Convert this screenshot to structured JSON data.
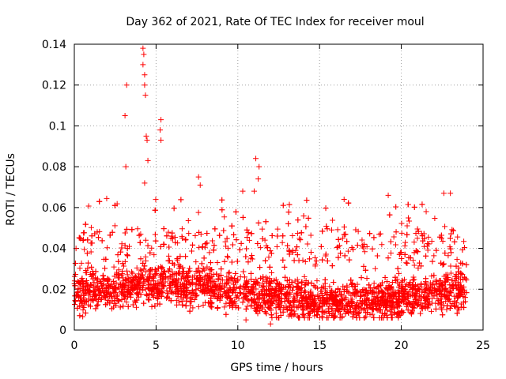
{
  "chart_data": {
    "type": "scatter",
    "title": "Day 362 of 2021, Rate Of TEC Index for receiver moul",
    "xlabel": "GPS time / hours",
    "ylabel": "ROTI / TECUs",
    "xlim": [
      0,
      25
    ],
    "ylim": [
      0,
      0.14
    ],
    "xticks": [
      0,
      5,
      10,
      15,
      20,
      25
    ],
    "xtick_labels": [
      "0",
      "5",
      "10",
      "15",
      "20",
      "25"
    ],
    "yticks": [
      0,
      0.02,
      0.04,
      0.06,
      0.08,
      0.1,
      0.12,
      0.14
    ],
    "ytick_labels": [
      "0",
      "0.02",
      "0.04",
      "0.06",
      "0.08",
      "0.1",
      "0.12",
      "0.14"
    ],
    "grid": true,
    "marker": "+",
    "series": [
      {
        "name": "ROTI",
        "color": "#ff0000",
        "n_points": 4200,
        "x_range": [
          0,
          24
        ],
        "typical_range": [
          0.008,
          0.035
        ],
        "notable_points": [
          {
            "x": 3.1,
            "y": 0.105
          },
          {
            "x": 3.2,
            "y": 0.12
          },
          {
            "x": 3.15,
            "y": 0.08
          },
          {
            "x": 4.2,
            "y": 0.138
          },
          {
            "x": 4.25,
            "y": 0.135
          },
          {
            "x": 4.2,
            "y": 0.13
          },
          {
            "x": 4.3,
            "y": 0.125
          },
          {
            "x": 4.3,
            "y": 0.12
          },
          {
            "x": 4.35,
            "y": 0.115
          },
          {
            "x": 4.4,
            "y": 0.095
          },
          {
            "x": 4.45,
            "y": 0.093
          },
          {
            "x": 4.5,
            "y": 0.083
          },
          {
            "x": 4.3,
            "y": 0.072
          },
          {
            "x": 5.3,
            "y": 0.103
          },
          {
            "x": 5.25,
            "y": 0.098
          },
          {
            "x": 5.3,
            "y": 0.093
          },
          {
            "x": 7.6,
            "y": 0.075
          },
          {
            "x": 7.7,
            "y": 0.071
          },
          {
            "x": 10.3,
            "y": 0.068
          },
          {
            "x": 11.0,
            "y": 0.068
          },
          {
            "x": 11.1,
            "y": 0.084
          },
          {
            "x": 11.3,
            "y": 0.08
          },
          {
            "x": 11.25,
            "y": 0.074
          },
          {
            "x": 16.5,
            "y": 0.064
          },
          {
            "x": 19.2,
            "y": 0.066
          },
          {
            "x": 22.6,
            "y": 0.067
          },
          {
            "x": 23.0,
            "y": 0.067
          },
          {
            "x": 12.0,
            "y": 0.003
          },
          {
            "x": 10.5,
            "y": 0.005
          }
        ]
      }
    ]
  }
}
